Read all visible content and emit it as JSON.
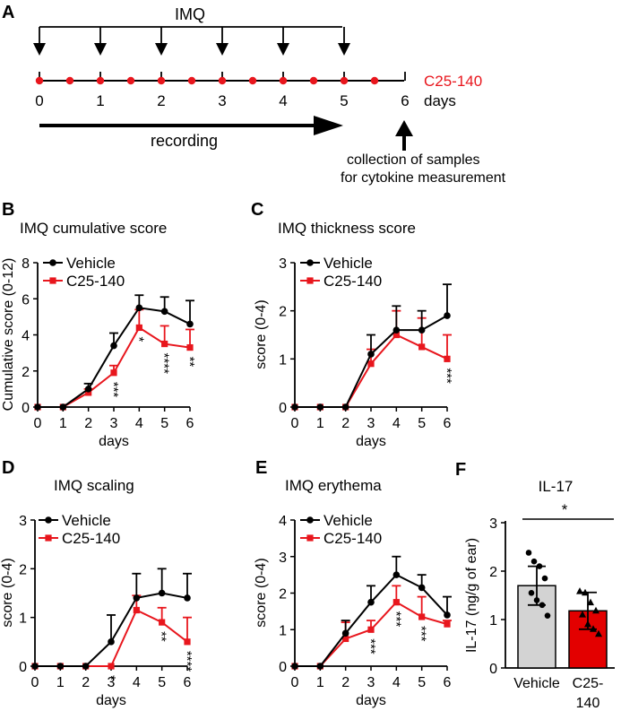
{
  "colors": {
    "vehicle": "#000000",
    "treat": "#e8161d",
    "bar_vehicle": "#d3d3d3",
    "bar_treat": "#e30000"
  },
  "schematic": {
    "panel": "A",
    "imq_label": "IMQ",
    "day_ticks": [
      "0",
      "1",
      "2",
      "3",
      "4",
      "5",
      "6"
    ],
    "imq_days": [
      0,
      1,
      2,
      3,
      4,
      5
    ],
    "dose_days": [
      0,
      0.5,
      1,
      1.5,
      2,
      2.5,
      3,
      3.5,
      4,
      4.5,
      5,
      5.5
    ],
    "compound_label": "C25-140",
    "days_label": "days",
    "recording_label": "recording",
    "collection_line1": "collection of samples",
    "collection_line2": "for cytokine measurement"
  },
  "chart_data": [
    {
      "panel": "B",
      "type": "line",
      "title": "IMQ cumulative score",
      "xlabel": "days",
      "ylabel": "Cumulative score (0-12)",
      "x": [
        0,
        1,
        2,
        3,
        4,
        5,
        6
      ],
      "ylim": [
        0,
        8
      ],
      "yticks": [
        0,
        2,
        4,
        6,
        8
      ],
      "series": [
        {
          "name": "Vehicle",
          "values": [
            0,
            0,
            1.0,
            3.4,
            5.5,
            5.3,
            4.6
          ],
          "err": [
            0,
            0,
            0.3,
            0.7,
            0.7,
            0.8,
            1.3
          ]
        },
        {
          "name": "C25-140",
          "values": [
            0,
            0,
            0.8,
            1.9,
            4.4,
            3.5,
            3.3
          ],
          "err": [
            0,
            0,
            0.2,
            0.4,
            1.0,
            1.0,
            1.0
          ]
        }
      ],
      "annotations": [
        {
          "x": 3,
          "text": "***"
        },
        {
          "x": 4,
          "text": "*"
        },
        {
          "x": 5,
          "text": "****"
        },
        {
          "x": 6,
          "text": "**"
        }
      ]
    },
    {
      "panel": "C",
      "type": "line",
      "title": "IMQ thickness score",
      "xlabel": "days",
      "ylabel": "score (0-4)",
      "x": [
        0,
        1,
        2,
        3,
        4,
        5,
        6
      ],
      "ylim": [
        0,
        3
      ],
      "yticks": [
        0,
        1,
        2,
        3
      ],
      "series": [
        {
          "name": "Vehicle",
          "values": [
            0,
            0,
            0,
            1.1,
            1.6,
            1.6,
            1.9
          ],
          "err": [
            0,
            0,
            0,
            0.4,
            0.5,
            0.4,
            0.65
          ]
        },
        {
          "name": "C25-140",
          "values": [
            0,
            0,
            0,
            0.9,
            1.5,
            1.25,
            1.0
          ],
          "err": [
            0,
            0,
            0,
            0.3,
            0.5,
            0.6,
            0.5
          ]
        }
      ],
      "annotations": [
        {
          "x": 6,
          "text": "***"
        }
      ]
    },
    {
      "panel": "D",
      "type": "line",
      "title": "IMQ scaling",
      "xlabel": "days",
      "ylabel": "score (0-4)",
      "x": [
        0,
        1,
        2,
        3,
        4,
        5,
        6
      ],
      "ylim": [
        0,
        3
      ],
      "yticks": [
        0,
        1,
        2,
        3
      ],
      "series": [
        {
          "name": "Vehicle",
          "values": [
            0,
            0,
            0,
            0.5,
            1.4,
            1.5,
            1.4
          ],
          "err": [
            0,
            0,
            0,
            0.55,
            0.5,
            0.5,
            0.5
          ]
        },
        {
          "name": "C25-140",
          "values": [
            0,
            0,
            0,
            0,
            1.15,
            0.9,
            0.5
          ],
          "err": [
            0,
            0,
            0,
            0,
            0.3,
            0.3,
            0.5
          ]
        }
      ],
      "annotations": [
        {
          "x": 3,
          "text": "*"
        },
        {
          "x": 5,
          "text": "**"
        },
        {
          "x": 6,
          "text": "****"
        }
      ]
    },
    {
      "panel": "E",
      "type": "line",
      "title": "IMQ erythema",
      "xlabel": "days",
      "ylabel": "score (0-4)",
      "x": [
        0,
        1,
        2,
        3,
        4,
        5,
        6
      ],
      "ylim": [
        0,
        4
      ],
      "yticks": [
        0,
        1,
        2,
        3,
        4
      ],
      "series": [
        {
          "name": "Vehicle",
          "values": [
            0,
            0,
            0.9,
            1.75,
            2.5,
            2.15,
            1.4
          ],
          "err": [
            0,
            0,
            0.35,
            0.45,
            0.5,
            0.35,
            0.5
          ]
        },
        {
          "name": "C25-140",
          "values": [
            0,
            0,
            0.75,
            1.0,
            1.75,
            1.35,
            1.15
          ],
          "err": [
            0,
            0,
            0.45,
            0.25,
            0.45,
            0.55,
            0.1
          ]
        }
      ],
      "annotations": [
        {
          "x": 3,
          "text": "***"
        },
        {
          "x": 4,
          "text": "***"
        },
        {
          "x": 5,
          "text": "***"
        }
      ]
    },
    {
      "panel": "F",
      "type": "bar",
      "title": "IL-17",
      "xlabel": "",
      "ylabel": "IL-17 (ng/g of ear)",
      "categories": [
        "Vehicle",
        "C25-140"
      ],
      "category_lines": [
        [
          "Vehicle"
        ],
        [
          "C25-",
          "140"
        ]
      ],
      "values": [
        1.7,
        1.18
      ],
      "err": [
        0.4,
        0.38
      ],
      "ylim": [
        0,
        3
      ],
      "yticks": [
        0,
        1,
        2,
        3
      ],
      "points": [
        [
          2.38,
          2.2,
          2.1,
          1.85,
          1.55,
          1.4,
          1.3,
          1.08
        ],
        [
          1.58,
          1.55,
          1.35,
          1.18,
          1.1,
          0.9,
          0.8,
          0.7
        ]
      ],
      "significance": "*"
    }
  ]
}
